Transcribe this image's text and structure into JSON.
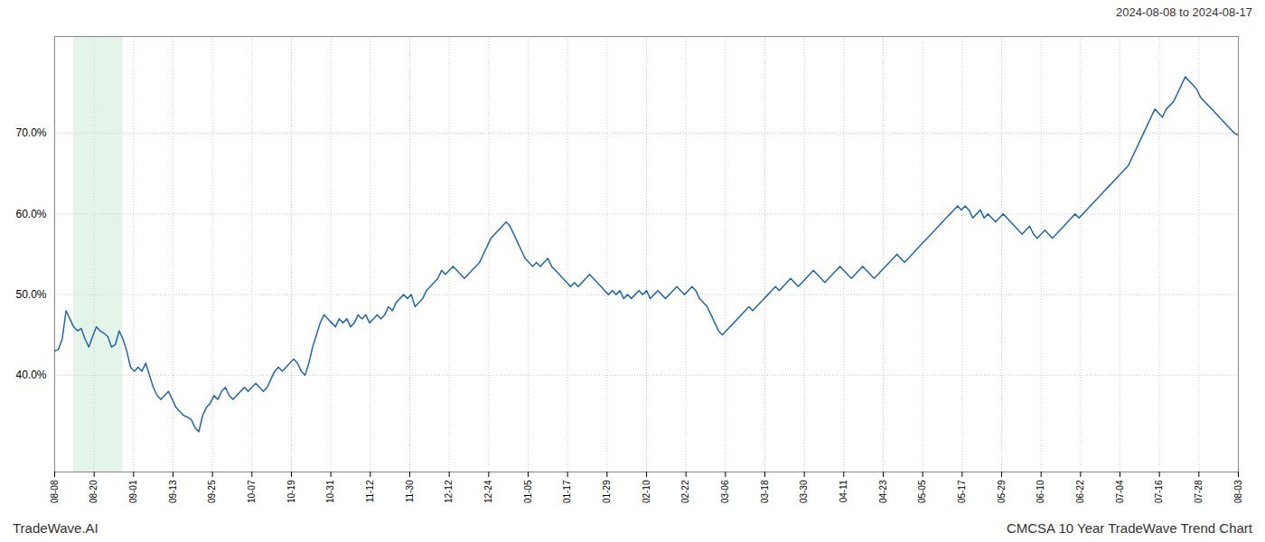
{
  "chart_data": {
    "type": "line",
    "title": "2024-08-08 to 2024-08-17",
    "annotations": [
      "TradeWave.AI",
      "CMCSA 10 Year TradeWave Trend Chart"
    ],
    "color": "#2166ac",
    "grid": true,
    "highlight": {
      "range": [
        5,
        18
      ],
      "color": "#d4edda"
    },
    "xlim": [
      0,
      312
    ],
    "xticks": [
      {
        "value": 0,
        "label": "08-08"
      },
      {
        "value": 10.4,
        "label": "08-20"
      },
      {
        "value": 20.8,
        "label": "09-01"
      },
      {
        "value": 31.2,
        "label": "09-13"
      },
      {
        "value": 41.6,
        "label": "09-25"
      },
      {
        "value": 52,
        "label": "10-07"
      },
      {
        "value": 62.4,
        "label": "10-19"
      },
      {
        "value": 72.8,
        "label": "10-31"
      },
      {
        "value": 83.2,
        "label": "11-12"
      },
      {
        "value": 93.6,
        "label": "11-30"
      },
      {
        "value": 104,
        "label": "12-12"
      },
      {
        "value": 114.4,
        "label": "12-24"
      },
      {
        "value": 124.8,
        "label": "01-05"
      },
      {
        "value": 135.2,
        "label": "01-17"
      },
      {
        "value": 145.6,
        "label": "01-29"
      },
      {
        "value": 156,
        "label": "02-10"
      },
      {
        "value": 166.4,
        "label": "02-22"
      },
      {
        "value": 176.8,
        "label": "03-06"
      },
      {
        "value": 187.2,
        "label": "03-18"
      },
      {
        "value": 197.6,
        "label": "03-30"
      },
      {
        "value": 208,
        "label": "04-11"
      },
      {
        "value": 218.4,
        "label": "04-23"
      },
      {
        "value": 228.8,
        "label": "05-05"
      },
      {
        "value": 239.2,
        "label": "05-17"
      },
      {
        "value": 249.6,
        "label": "05-29"
      },
      {
        "value": 260,
        "label": "06-10"
      },
      {
        "value": 270.4,
        "label": "06-22"
      },
      {
        "value": 280.8,
        "label": "07-04"
      },
      {
        "value": 291.2,
        "label": "07-16"
      },
      {
        "value": 301.6,
        "label": "07-28"
      },
      {
        "value": 312,
        "label": "08-03"
      }
    ],
    "ylim": [
      28,
      82
    ],
    "yticks": [
      {
        "value": 40,
        "label": "40.0%"
      },
      {
        "value": 50,
        "label": "50.0%"
      },
      {
        "value": 60,
        "label": "60.0%"
      },
      {
        "value": 70,
        "label": "70.0%"
      }
    ],
    "values": [
      43.0,
      43.2,
      44.5,
      48.0,
      47.0,
      46.0,
      45.5,
      45.8,
      44.5,
      43.5,
      44.8,
      46.0,
      45.5,
      45.2,
      44.8,
      43.5,
      43.8,
      45.5,
      44.5,
      43.0,
      41.0,
      40.5,
      41.0,
      40.5,
      41.5,
      40.0,
      38.5,
      37.5,
      37.0,
      37.5,
      38.0,
      37.0,
      36.0,
      35.5,
      35.0,
      34.8,
      34.5,
      33.5,
      33.0,
      35.0,
      36.0,
      36.5,
      37.5,
      37.0,
      38.0,
      38.5,
      37.5,
      37.0,
      37.5,
      38.0,
      38.5,
      38.0,
      38.5,
      39.0,
      38.5,
      38.0,
      38.5,
      39.5,
      40.5,
      41.0,
      40.5,
      41.0,
      41.5,
      42.0,
      41.5,
      40.5,
      40.0,
      41.5,
      43.5,
      45.0,
      46.5,
      47.5,
      47.0,
      46.5,
      46.0,
      47.0,
      46.5,
      47.0,
      46.0,
      46.5,
      47.5,
      47.0,
      47.5,
      46.5,
      47.0,
      47.5,
      47.0,
      47.5,
      48.5,
      48.0,
      49.0,
      49.5,
      50.0,
      49.5,
      50.0,
      48.5,
      49.0,
      49.5,
      50.5,
      51.0,
      51.5,
      52.0,
      53.0,
      52.5,
      53.0,
      53.5,
      53.0,
      52.5,
      52.0,
      52.5,
      53.0,
      53.5,
      54.0,
      55.0,
      56.0,
      57.0,
      57.5,
      58.0,
      58.5,
      59.0,
      58.5,
      57.5,
      56.5,
      55.5,
      54.5,
      54.0,
      53.5,
      54.0,
      53.5,
      54.0,
      54.5,
      53.5,
      53.0,
      52.5,
      52.0,
      51.5,
      51.0,
      51.5,
      51.0,
      51.5,
      52.0,
      52.5,
      52.0,
      51.5,
      51.0,
      50.5,
      50.0,
      50.5,
      50.0,
      50.5,
      49.5,
      50.0,
      49.5,
      50.0,
      50.5,
      50.0,
      50.5,
      49.5,
      50.0,
      50.5,
      50.0,
      49.5,
      50.0,
      50.5,
      51.0,
      50.5,
      50.0,
      50.5,
      51.0,
      50.5,
      49.5,
      49.0,
      48.5,
      47.5,
      46.5,
      45.5,
      45.0,
      45.5,
      46.0,
      46.5,
      47.0,
      47.5,
      48.0,
      48.5,
      48.0,
      48.5,
      49.0,
      49.5,
      50.0,
      50.5,
      51.0,
      50.5,
      51.0,
      51.5,
      52.0,
      51.5,
      51.0,
      51.5,
      52.0,
      52.5,
      53.0,
      52.5,
      52.0,
      51.5,
      52.0,
      52.5,
      53.0,
      53.5,
      53.0,
      52.5,
      52.0,
      52.5,
      53.0,
      53.5,
      53.0,
      52.5,
      52.0,
      52.5,
      53.0,
      53.5,
      54.0,
      54.5,
      55.0,
      54.5,
      54.0,
      54.5,
      55.0,
      55.5,
      56.0,
      56.5,
      57.0,
      57.5,
      58.0,
      58.5,
      59.0,
      59.5,
      60.0,
      60.5,
      61.0,
      60.5,
      61.0,
      60.5,
      59.5,
      60.0,
      60.5,
      59.5,
      60.0,
      59.5,
      59.0,
      59.5,
      60.0,
      59.5,
      59.0,
      58.5,
      58.0,
      57.5,
      58.0,
      58.5,
      57.5,
      57.0,
      57.5,
      58.0,
      57.5,
      57.0,
      57.5,
      58.0,
      58.5,
      59.0,
      59.5,
      60.0,
      59.5,
      60.0,
      60.5,
      61.0,
      61.5,
      62.0,
      62.5,
      63.0,
      63.5,
      64.0,
      64.5,
      65.0,
      65.5,
      66.0,
      67.0,
      68.0,
      69.0,
      70.0,
      71.0,
      72.0,
      73.0,
      72.5,
      72.0,
      73.0,
      73.5,
      74.0,
      75.0,
      76.0,
      77.0,
      76.5,
      76.0,
      75.5,
      74.5,
      74.0,
      73.5,
      73.0,
      72.5,
      72.0,
      71.5,
      71.0,
      70.5,
      70.0,
      69.8
    ]
  }
}
